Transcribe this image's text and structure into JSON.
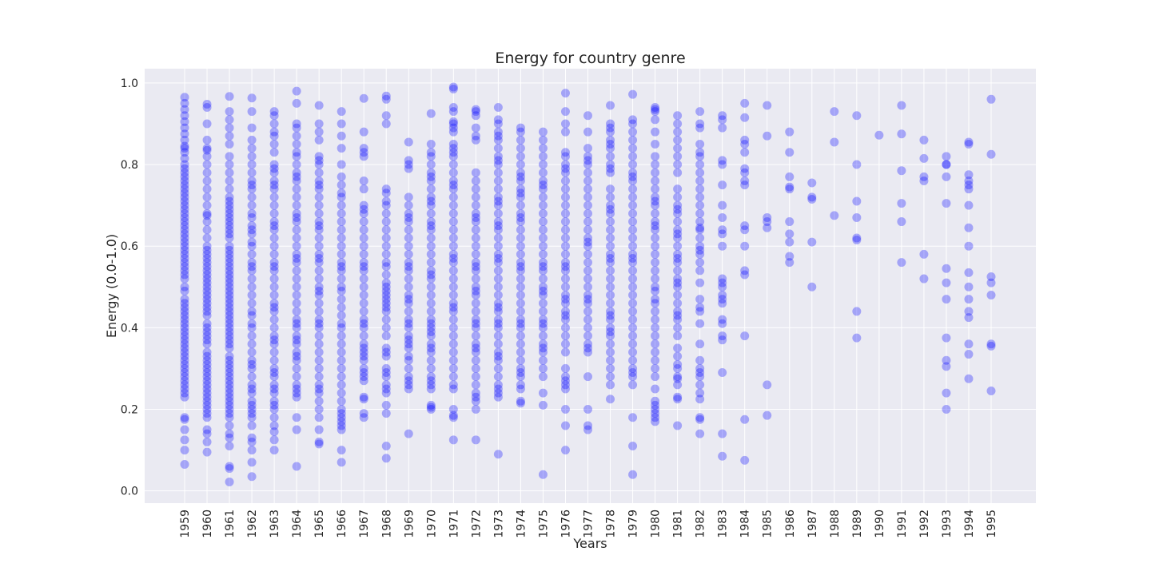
{
  "chart_data": {
    "type": "scatter",
    "title": "Energy for country genre",
    "xlabel": "Years",
    "ylabel": "Energy (0.0-1.0)",
    "ylim": [
      -0.03,
      1.035
    ],
    "grid": true,
    "point_color": "#0000ff",
    "point_alpha": 0.3,
    "background_color": "#eaeaf2",
    "grid_color": "#ffffff",
    "x_categories": [
      "1959",
      "1960",
      "1961",
      "1962",
      "1963",
      "1964",
      "1965",
      "1966",
      "1967",
      "1968",
      "1969",
      "1970",
      "1971",
      "1972",
      "1973",
      "1974",
      "1975",
      "1976",
      "1977",
      "1978",
      "1979",
      "1980",
      "1981",
      "1982",
      "1983",
      "1984",
      "1985",
      "1986",
      "1987",
      "1988",
      "1989",
      "1990",
      "1991",
      "1992",
      "1993",
      "1994",
      "1995"
    ],
    "y_ticks": [
      "0.0",
      "0.2",
      "0.4",
      "0.6",
      "0.8",
      "1.0"
    ],
    "points_by_year": {
      "1959": [
        0.965,
        0.95,
        0.935,
        0.92,
        0.905,
        0.89,
        0.875,
        0.86,
        0.845,
        0.84,
        0.83,
        0.815,
        0.8,
        0.79,
        0.78,
        0.77,
        0.76,
        0.75,
        0.74,
        0.73,
        0.72,
        0.71,
        0.7,
        0.69,
        0.68,
        0.67,
        0.66,
        0.65,
        0.64,
        0.63,
        0.62,
        0.61,
        0.6,
        0.59,
        0.58,
        0.57,
        0.56,
        0.55,
        0.54,
        0.53,
        0.52,
        0.5,
        0.49,
        0.47,
        0.46,
        0.45,
        0.44,
        0.43,
        0.42,
        0.41,
        0.4,
        0.39,
        0.38,
        0.37,
        0.36,
        0.35,
        0.34,
        0.33,
        0.32,
        0.31,
        0.3,
        0.29,
        0.28,
        0.27,
        0.26,
        0.25,
        0.24,
        0.23,
        0.18,
        0.175,
        0.15,
        0.125,
        0.1,
        0.065
      ],
      "1960": [
        0.948,
        0.94,
        0.9,
        0.86,
        0.84,
        0.835,
        0.82,
        0.8,
        0.78,
        0.76,
        0.74,
        0.72,
        0.7,
        0.68,
        0.675,
        0.66,
        0.64,
        0.62,
        0.6,
        0.59,
        0.58,
        0.57,
        0.56,
        0.55,
        0.54,
        0.53,
        0.52,
        0.51,
        0.5,
        0.49,
        0.48,
        0.47,
        0.46,
        0.45,
        0.44,
        0.43,
        0.41,
        0.4,
        0.39,
        0.38,
        0.37,
        0.36,
        0.34,
        0.33,
        0.32,
        0.31,
        0.3,
        0.29,
        0.28,
        0.27,
        0.26,
        0.25,
        0.24,
        0.23,
        0.22,
        0.21,
        0.2,
        0.19,
        0.18,
        0.15,
        0.14,
        0.12,
        0.095
      ],
      "1961": [
        0.967,
        0.93,
        0.91,
        0.89,
        0.87,
        0.85,
        0.82,
        0.8,
        0.78,
        0.76,
        0.74,
        0.72,
        0.71,
        0.7,
        0.69,
        0.68,
        0.67,
        0.66,
        0.65,
        0.64,
        0.63,
        0.62,
        0.6,
        0.59,
        0.58,
        0.57,
        0.56,
        0.55,
        0.54,
        0.53,
        0.52,
        0.51,
        0.5,
        0.49,
        0.48,
        0.47,
        0.46,
        0.45,
        0.44,
        0.43,
        0.42,
        0.41,
        0.4,
        0.39,
        0.38,
        0.37,
        0.36,
        0.35,
        0.33,
        0.32,
        0.31,
        0.3,
        0.29,
        0.28,
        0.27,
        0.26,
        0.25,
        0.24,
        0.23,
        0.22,
        0.21,
        0.2,
        0.19,
        0.18,
        0.16,
        0.14,
        0.13,
        0.11,
        0.06,
        0.055,
        0.022
      ],
      "1962": [
        0.963,
        0.93,
        0.89,
        0.86,
        0.84,
        0.82,
        0.8,
        0.78,
        0.76,
        0.75,
        0.74,
        0.72,
        0.7,
        0.68,
        0.67,
        0.65,
        0.64,
        0.63,
        0.61,
        0.6,
        0.58,
        0.56,
        0.55,
        0.54,
        0.52,
        0.5,
        0.48,
        0.46,
        0.44,
        0.43,
        0.41,
        0.4,
        0.38,
        0.36,
        0.34,
        0.32,
        0.31,
        0.3,
        0.28,
        0.26,
        0.25,
        0.24,
        0.22,
        0.21,
        0.2,
        0.19,
        0.18,
        0.16,
        0.13,
        0.12,
        0.1,
        0.07,
        0.035
      ],
      "1963": [
        0.93,
        0.92,
        0.9,
        0.88,
        0.87,
        0.85,
        0.83,
        0.8,
        0.79,
        0.78,
        0.76,
        0.75,
        0.74,
        0.72,
        0.7,
        0.68,
        0.66,
        0.65,
        0.64,
        0.62,
        0.6,
        0.58,
        0.56,
        0.55,
        0.54,
        0.52,
        0.5,
        0.48,
        0.46,
        0.45,
        0.44,
        0.42,
        0.4,
        0.38,
        0.37,
        0.36,
        0.34,
        0.32,
        0.3,
        0.29,
        0.28,
        0.26,
        0.25,
        0.24,
        0.22,
        0.21,
        0.2,
        0.18,
        0.16,
        0.145,
        0.125,
        0.1
      ],
      "1964": [
        0.98,
        0.95,
        0.9,
        0.89,
        0.87,
        0.85,
        0.83,
        0.82,
        0.8,
        0.78,
        0.77,
        0.76,
        0.74,
        0.72,
        0.7,
        0.68,
        0.67,
        0.66,
        0.64,
        0.62,
        0.6,
        0.58,
        0.57,
        0.56,
        0.54,
        0.52,
        0.5,
        0.48,
        0.46,
        0.44,
        0.42,
        0.41,
        0.4,
        0.38,
        0.37,
        0.36,
        0.34,
        0.33,
        0.32,
        0.3,
        0.28,
        0.26,
        0.25,
        0.24,
        0.23,
        0.18,
        0.15,
        0.06
      ],
      "1965": [
        0.945,
        0.9,
        0.88,
        0.86,
        0.82,
        0.81,
        0.8,
        0.78,
        0.76,
        0.75,
        0.74,
        0.72,
        0.7,
        0.68,
        0.66,
        0.65,
        0.64,
        0.62,
        0.6,
        0.58,
        0.57,
        0.56,
        0.54,
        0.52,
        0.5,
        0.49,
        0.48,
        0.46,
        0.44,
        0.42,
        0.41,
        0.4,
        0.38,
        0.36,
        0.34,
        0.32,
        0.3,
        0.28,
        0.26,
        0.25,
        0.24,
        0.22,
        0.2,
        0.18,
        0.15,
        0.12,
        0.115
      ],
      "1966": [
        0.93,
        0.9,
        0.87,
        0.84,
        0.8,
        0.77,
        0.75,
        0.73,
        0.72,
        0.7,
        0.68,
        0.66,
        0.64,
        0.62,
        0.6,
        0.58,
        0.56,
        0.55,
        0.54,
        0.52,
        0.5,
        0.49,
        0.47,
        0.45,
        0.43,
        0.41,
        0.4,
        0.38,
        0.36,
        0.34,
        0.32,
        0.3,
        0.28,
        0.26,
        0.24,
        0.22,
        0.2,
        0.19,
        0.18,
        0.17,
        0.16,
        0.15,
        0.1,
        0.07
      ],
      "1967": [
        0.962,
        0.88,
        0.84,
        0.83,
        0.82,
        0.76,
        0.74,
        0.7,
        0.69,
        0.68,
        0.66,
        0.64,
        0.62,
        0.6,
        0.58,
        0.56,
        0.55,
        0.54,
        0.52,
        0.5,
        0.48,
        0.46,
        0.44,
        0.42,
        0.41,
        0.4,
        0.38,
        0.36,
        0.35,
        0.34,
        0.33,
        0.32,
        0.3,
        0.29,
        0.28,
        0.27,
        0.23,
        0.225,
        0.19,
        0.18
      ],
      "1968": [
        0.968,
        0.96,
        0.92,
        0.9,
        0.74,
        0.73,
        0.71,
        0.7,
        0.68,
        0.66,
        0.64,
        0.62,
        0.6,
        0.58,
        0.56,
        0.55,
        0.53,
        0.51,
        0.5,
        0.49,
        0.48,
        0.47,
        0.46,
        0.45,
        0.44,
        0.42,
        0.4,
        0.38,
        0.35,
        0.34,
        0.33,
        0.3,
        0.29,
        0.28,
        0.26,
        0.25,
        0.24,
        0.21,
        0.19,
        0.11,
        0.08
      ],
      "1969": [
        0.855,
        0.81,
        0.8,
        0.79,
        0.72,
        0.7,
        0.68,
        0.67,
        0.66,
        0.64,
        0.62,
        0.6,
        0.58,
        0.56,
        0.55,
        0.54,
        0.52,
        0.5,
        0.48,
        0.47,
        0.46,
        0.44,
        0.42,
        0.41,
        0.4,
        0.38,
        0.37,
        0.36,
        0.35,
        0.33,
        0.32,
        0.3,
        0.28,
        0.27,
        0.26,
        0.25,
        0.14
      ],
      "1970": [
        0.925,
        0.85,
        0.83,
        0.82,
        0.8,
        0.78,
        0.77,
        0.76,
        0.74,
        0.72,
        0.71,
        0.7,
        0.68,
        0.66,
        0.65,
        0.64,
        0.62,
        0.6,
        0.58,
        0.56,
        0.54,
        0.53,
        0.52,
        0.5,
        0.48,
        0.46,
        0.44,
        0.42,
        0.41,
        0.4,
        0.39,
        0.38,
        0.36,
        0.35,
        0.34,
        0.32,
        0.3,
        0.28,
        0.27,
        0.26,
        0.25,
        0.21,
        0.205,
        0.2
      ],
      "1971": [
        0.99,
        0.985,
        0.94,
        0.93,
        0.905,
        0.9,
        0.89,
        0.88,
        0.85,
        0.84,
        0.83,
        0.82,
        0.8,
        0.78,
        0.76,
        0.75,
        0.74,
        0.72,
        0.7,
        0.68,
        0.66,
        0.64,
        0.62,
        0.6,
        0.58,
        0.57,
        0.56,
        0.54,
        0.52,
        0.5,
        0.48,
        0.46,
        0.45,
        0.44,
        0.42,
        0.4,
        0.38,
        0.36,
        0.34,
        0.32,
        0.3,
        0.28,
        0.26,
        0.25,
        0.2,
        0.185,
        0.18,
        0.125
      ],
      "1972": [
        0.935,
        0.93,
        0.92,
        0.89,
        0.87,
        0.86,
        0.78,
        0.76,
        0.74,
        0.72,
        0.7,
        0.68,
        0.67,
        0.66,
        0.64,
        0.62,
        0.6,
        0.58,
        0.56,
        0.55,
        0.54,
        0.52,
        0.5,
        0.49,
        0.48,
        0.46,
        0.44,
        0.42,
        0.41,
        0.4,
        0.38,
        0.36,
        0.35,
        0.34,
        0.32,
        0.3,
        0.28,
        0.26,
        0.24,
        0.23,
        0.22,
        0.2,
        0.125
      ],
      "1973": [
        0.94,
        0.91,
        0.9,
        0.88,
        0.87,
        0.86,
        0.84,
        0.82,
        0.81,
        0.8,
        0.78,
        0.76,
        0.74,
        0.72,
        0.71,
        0.7,
        0.68,
        0.66,
        0.65,
        0.64,
        0.62,
        0.6,
        0.58,
        0.57,
        0.56,
        0.54,
        0.52,
        0.5,
        0.48,
        0.46,
        0.45,
        0.44,
        0.42,
        0.41,
        0.4,
        0.38,
        0.36,
        0.34,
        0.33,
        0.32,
        0.3,
        0.28,
        0.26,
        0.25,
        0.24,
        0.23,
        0.09
      ],
      "1974": [
        0.89,
        0.88,
        0.86,
        0.84,
        0.82,
        0.8,
        0.78,
        0.77,
        0.76,
        0.74,
        0.73,
        0.72,
        0.7,
        0.68,
        0.67,
        0.66,
        0.64,
        0.62,
        0.6,
        0.58,
        0.56,
        0.55,
        0.54,
        0.52,
        0.5,
        0.48,
        0.46,
        0.44,
        0.42,
        0.41,
        0.4,
        0.38,
        0.36,
        0.34,
        0.32,
        0.3,
        0.29,
        0.28,
        0.26,
        0.25,
        0.22,
        0.215
      ],
      "1975": [
        0.88,
        0.86,
        0.84,
        0.82,
        0.8,
        0.78,
        0.76,
        0.75,
        0.74,
        0.72,
        0.7,
        0.68,
        0.66,
        0.64,
        0.62,
        0.6,
        0.58,
        0.56,
        0.55,
        0.54,
        0.52,
        0.5,
        0.49,
        0.48,
        0.46,
        0.44,
        0.42,
        0.41,
        0.4,
        0.38,
        0.36,
        0.35,
        0.34,
        0.32,
        0.3,
        0.28,
        0.24,
        0.21,
        0.04
      ],
      "1976": [
        0.975,
        0.93,
        0.9,
        0.88,
        0.83,
        0.82,
        0.8,
        0.79,
        0.78,
        0.76,
        0.74,
        0.72,
        0.7,
        0.68,
        0.66,
        0.64,
        0.62,
        0.6,
        0.58,
        0.56,
        0.55,
        0.54,
        0.52,
        0.5,
        0.48,
        0.47,
        0.46,
        0.44,
        0.43,
        0.42,
        0.4,
        0.38,
        0.36,
        0.34,
        0.3,
        0.28,
        0.27,
        0.26,
        0.25,
        0.2,
        0.16,
        0.1
      ],
      "1977": [
        0.92,
        0.88,
        0.84,
        0.82,
        0.81,
        0.8,
        0.78,
        0.76,
        0.74,
        0.72,
        0.7,
        0.68,
        0.66,
        0.64,
        0.62,
        0.61,
        0.6,
        0.58,
        0.56,
        0.54,
        0.52,
        0.5,
        0.48,
        0.47,
        0.46,
        0.44,
        0.42,
        0.4,
        0.38,
        0.36,
        0.35,
        0.34,
        0.28,
        0.2,
        0.16,
        0.15
      ],
      "1978": [
        0.945,
        0.9,
        0.89,
        0.88,
        0.86,
        0.85,
        0.84,
        0.82,
        0.8,
        0.79,
        0.78,
        0.74,
        0.72,
        0.7,
        0.69,
        0.68,
        0.66,
        0.64,
        0.62,
        0.6,
        0.58,
        0.57,
        0.56,
        0.54,
        0.52,
        0.5,
        0.48,
        0.46,
        0.44,
        0.43,
        0.42,
        0.4,
        0.39,
        0.38,
        0.36,
        0.34,
        0.32,
        0.3,
        0.28,
        0.26,
        0.225
      ],
      "1979": [
        0.972,
        0.91,
        0.9,
        0.88,
        0.86,
        0.84,
        0.82,
        0.8,
        0.78,
        0.77,
        0.76,
        0.74,
        0.72,
        0.7,
        0.68,
        0.66,
        0.64,
        0.62,
        0.6,
        0.58,
        0.57,
        0.56,
        0.54,
        0.52,
        0.5,
        0.48,
        0.46,
        0.44,
        0.42,
        0.4,
        0.38,
        0.36,
        0.34,
        0.32,
        0.3,
        0.29,
        0.28,
        0.26,
        0.18,
        0.11,
        0.04
      ],
      "1980": [
        0.94,
        0.935,
        0.93,
        0.91,
        0.88,
        0.85,
        0.82,
        0.8,
        0.78,
        0.76,
        0.74,
        0.72,
        0.71,
        0.7,
        0.68,
        0.66,
        0.65,
        0.64,
        0.62,
        0.6,
        0.58,
        0.56,
        0.54,
        0.52,
        0.5,
        0.49,
        0.47,
        0.46,
        0.44,
        0.42,
        0.4,
        0.38,
        0.36,
        0.34,
        0.32,
        0.3,
        0.28,
        0.25,
        0.22,
        0.21,
        0.2,
        0.19,
        0.18,
        0.17
      ],
      "1981": [
        0.92,
        0.9,
        0.88,
        0.86,
        0.84,
        0.82,
        0.8,
        0.78,
        0.74,
        0.72,
        0.7,
        0.69,
        0.68,
        0.66,
        0.64,
        0.63,
        0.62,
        0.6,
        0.58,
        0.57,
        0.56,
        0.54,
        0.52,
        0.51,
        0.5,
        0.48,
        0.46,
        0.44,
        0.43,
        0.42,
        0.4,
        0.38,
        0.35,
        0.33,
        0.31,
        0.3,
        0.28,
        0.275,
        0.26,
        0.23,
        0.225,
        0.16
      ],
      "1982": [
        0.93,
        0.9,
        0.89,
        0.85,
        0.83,
        0.82,
        0.8,
        0.78,
        0.76,
        0.74,
        0.72,
        0.7,
        0.68,
        0.66,
        0.645,
        0.64,
        0.62,
        0.6,
        0.59,
        0.58,
        0.56,
        0.54,
        0.51,
        0.47,
        0.45,
        0.44,
        0.41,
        0.36,
        0.32,
        0.3,
        0.29,
        0.28,
        0.26,
        0.24,
        0.225,
        0.18,
        0.175,
        0.14
      ],
      "1983": [
        0.92,
        0.91,
        0.89,
        0.81,
        0.8,
        0.75,
        0.7,
        0.67,
        0.64,
        0.63,
        0.6,
        0.52,
        0.51,
        0.5,
        0.48,
        0.47,
        0.46,
        0.42,
        0.41,
        0.38,
        0.37,
        0.29,
        0.14,
        0.085
      ],
      "1984": [
        0.95,
        0.915,
        0.86,
        0.85,
        0.83,
        0.79,
        0.78,
        0.76,
        0.75,
        0.65,
        0.64,
        0.6,
        0.54,
        0.53,
        0.38,
        0.175,
        0.075
      ],
      "1985": [
        0.945,
        0.87,
        0.67,
        0.66,
        0.645,
        0.26,
        0.185
      ],
      "1986": [
        0.88,
        0.83,
        0.77,
        0.745,
        0.74,
        0.66,
        0.63,
        0.61,
        0.575,
        0.56
      ],
      "1987": [
        0.755,
        0.72,
        0.715,
        0.61,
        0.5
      ],
      "1988": [
        0.93,
        0.855,
        0.675
      ],
      "1989": [
        0.92,
        0.8,
        0.71,
        0.67,
        0.62,
        0.615,
        0.44,
        0.375
      ],
      "1990": [
        0.872
      ],
      "1991": [
        0.945,
        0.875,
        0.785,
        0.705,
        0.66,
        0.56
      ],
      "1992": [
        0.86,
        0.815,
        0.77,
        0.76,
        0.58,
        0.52
      ],
      "1993": [
        0.82,
        0.8,
        0.8,
        0.77,
        0.705,
        0.545,
        0.51,
        0.47,
        0.375,
        0.32,
        0.305,
        0.24,
        0.2
      ],
      "1994": [
        0.855,
        0.85,
        0.775,
        0.76,
        0.75,
        0.74,
        0.7,
        0.645,
        0.6,
        0.535,
        0.5,
        0.47,
        0.44,
        0.425,
        0.36,
        0.335,
        0.275
      ],
      "1995": [
        0.96,
        0.825,
        0.525,
        0.51,
        0.48,
        0.36,
        0.355,
        0.245
      ]
    }
  }
}
